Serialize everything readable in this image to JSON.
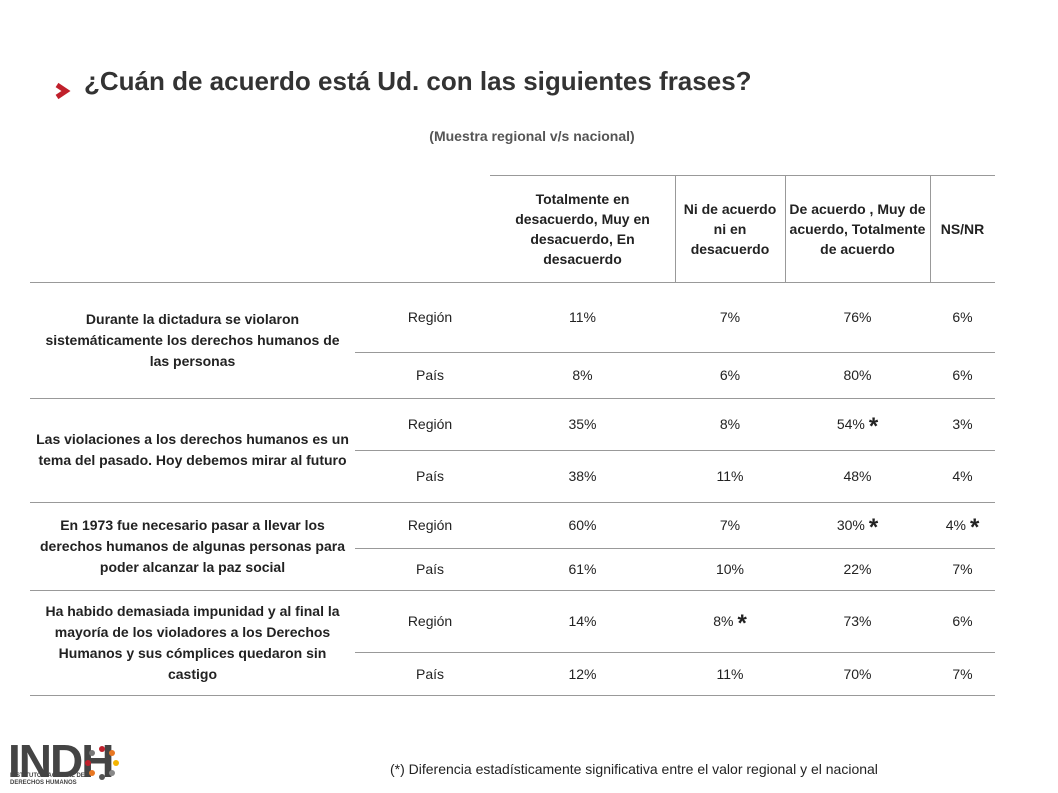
{
  "header": {
    "title": "¿Cuán de acuerdo está Ud. con las siguientes frases?",
    "subtitle": "(Muestra regional v/s nacional)"
  },
  "table": {
    "columns": [
      "Totalmente en desacuerdo, Muy en desacuerdo, En desacuerdo",
      "Ni de acuerdo ni en desacuerdo",
      "De acuerdo , Muy de acuerdo, Totalmente de acuerdo",
      "NS/NR"
    ],
    "groups": [
      {
        "statement": "Durante la dictadura se violaron sistemáticamente los derechos humanos de las personas",
        "rows": [
          {
            "label": "Región",
            "values": [
              "11%",
              "7%",
              "76%",
              "6%"
            ]
          },
          {
            "label": "País",
            "values": [
              "8%",
              "6%",
              "80%",
              "6%"
            ]
          }
        ]
      },
      {
        "statement": "Las violaciones a los derechos humanos es un tema del pasado. Hoy debemos mirar al futuro",
        "rows": [
          {
            "label": "Región",
            "values": [
              "35%",
              "8%",
              {
                "text": "54%",
                "note": "*"
              },
              "3%"
            ]
          },
          {
            "label": "País",
            "values": [
              "38%",
              "11%",
              "48%",
              "4%"
            ]
          }
        ]
      },
      {
        "statement": "En 1973 fue necesario pasar a llevar los derechos humanos de algunas personas para poder alcanzar la paz social",
        "rows": [
          {
            "label": "Región",
            "values": [
              "60%",
              "7%",
              {
                "text": "30%",
                "note": "*"
              },
              {
                "text": "4%",
                "note": "*"
              }
            ]
          },
          {
            "label": "País",
            "values": [
              "61%",
              "10%",
              "22%",
              "7%"
            ]
          }
        ]
      },
      {
        "statement": "Ha habido demasiada impunidad y al final la mayoría de los violadores a los Derechos Humanos y sus cómplices quedaron sin castigo",
        "rows": [
          {
            "label": "Región",
            "values": [
              "14%",
              {
                "text": "8%",
                "note": "*"
              },
              "73%",
              "6%"
            ]
          },
          {
            "label": "País",
            "values": [
              "12%",
              "11%",
              "70%",
              "7%"
            ]
          }
        ]
      }
    ]
  },
  "footer": {
    "note": "(*) Diferencia estadísticamente significativa entre el valor regional y el nacional",
    "logo": "INDH",
    "logo_caption": "INSTITUTO NACIONAL DE DERECHOS HUMANOS"
  }
}
